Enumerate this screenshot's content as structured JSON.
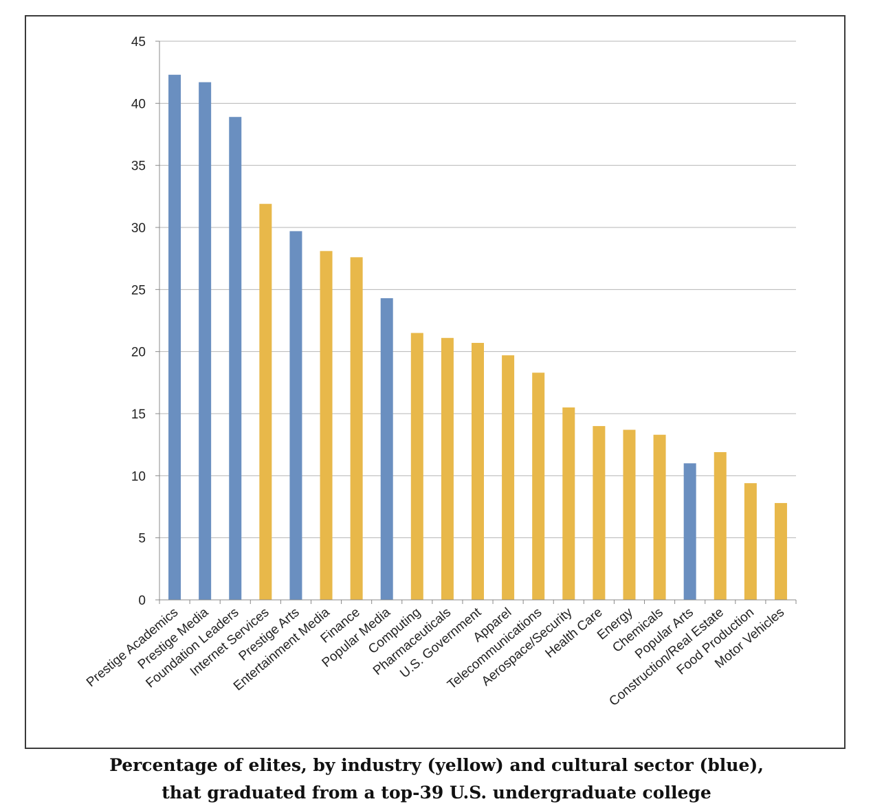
{
  "caption": {
    "line1": "Percentage of elites, by industry (yellow) and cultural sector (blue),",
    "line2": "that graduated from a top-39 U.S. undergraduate college"
  },
  "colors": {
    "industry": "#E8B84A",
    "cultural": "#6A8FC0"
  },
  "chart_data": {
    "type": "bar",
    "title": "Percentage of elites, by industry (yellow) and cultural sector (blue), that graduated from a top-39 U.S. undergraduate college",
    "xlabel": "",
    "ylabel": "",
    "ylim": [
      0,
      45
    ],
    "yticks": [
      0,
      5,
      10,
      15,
      20,
      25,
      30,
      35,
      40,
      45
    ],
    "grid": true,
    "legend": "none",
    "categories": [
      "Prestige Academics",
      "Prestige Media",
      "Foundation Leaders",
      "Internet Services",
      "Prestige Arts",
      "Entertainment Media",
      "Finance",
      "Popular Media",
      "Computing",
      "Pharmaceuticals",
      "U.S. Government",
      "Apparel",
      "Telecommunications",
      "Aerospace/Security",
      "Health Care",
      "Energy",
      "Chemicals",
      "Popular Arts",
      "Construction/Real Estate",
      "Food Production",
      "Motor Vehicles"
    ],
    "values": [
      42.3,
      41.7,
      38.9,
      31.9,
      29.7,
      28.1,
      27.6,
      24.3,
      21.5,
      21.1,
      20.7,
      19.7,
      18.3,
      15.5,
      14.0,
      13.7,
      13.3,
      11.0,
      11.9,
      9.4,
      7.8
    ],
    "groups": [
      "cultural",
      "cultural",
      "cultural",
      "industry",
      "cultural",
      "industry",
      "industry",
      "cultural",
      "industry",
      "industry",
      "industry",
      "industry",
      "industry",
      "industry",
      "industry",
      "industry",
      "industry",
      "cultural",
      "industry",
      "industry",
      "industry"
    ]
  }
}
